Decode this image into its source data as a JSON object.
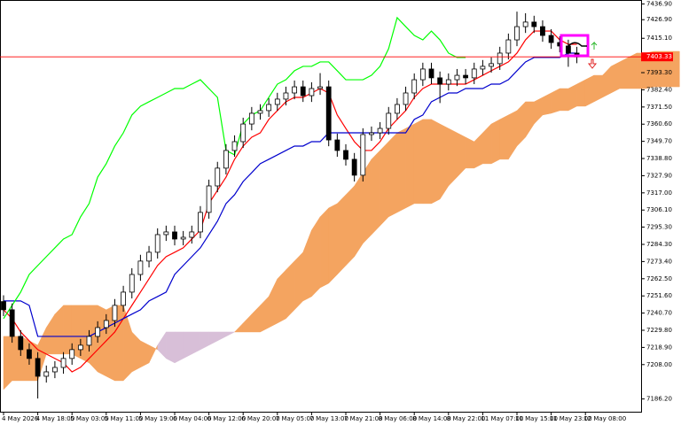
{
  "chart_data": {
    "type": "candlestick",
    "categories": [
      "4 May 2026",
      null,
      null,
      null,
      "4 May 18:00",
      null,
      null,
      null,
      "5 May 03:00",
      null,
      null,
      null,
      "5 May 11:00",
      null,
      null,
      null,
      "5 May 19:00",
      null,
      null,
      null,
      "6 May 04:00",
      null,
      null,
      null,
      "6 May 12:00",
      null,
      null,
      null,
      "6 May 20:00",
      null,
      null,
      null,
      "7 May 05:00",
      null,
      null,
      null,
      "7 May 13:00",
      null,
      null,
      null,
      "7 May 21:00",
      null,
      null,
      null,
      "8 May 06:00",
      null,
      null,
      null,
      "8 May 14:00",
      null,
      null,
      null,
      "8 May 22:00",
      null,
      null,
      null,
      "11 May 07:00",
      null,
      null,
      null,
      "11 May 15:00",
      null,
      null,
      null,
      "11 May 23:00",
      null,
      null,
      null,
      "12 May 08:00",
      null,
      null,
      null,
      null,
      null,
      null,
      null,
      null,
      null,
      null,
      null
    ],
    "candles": {
      "open": [
        7248.0,
        7242.8,
        7225.9,
        7217.5,
        7211.9,
        7200.6,
        7203.4,
        7206.2,
        7211.9,
        7217.5,
        7220.3,
        7225.9,
        7231.5,
        7236.0,
        7245.6,
        7254.0,
        7265.2,
        7273.7,
        7279.3,
        7290.5,
        7292.2,
        7287.7,
        7288.8,
        7292.2,
        7304.6,
        7321.4,
        7332.7,
        7343.9,
        7349.5,
        7360.7,
        7367.5,
        7369.2,
        7373.1,
        7376.5,
        7380.4,
        7384.3,
        7378.7,
        7383.2,
        7384.3,
        7350.6,
        7343.9,
        7338.3,
        7328.2,
        7354.0,
        7355.1,
        7357.9,
        7367.5,
        7373.1,
        7380.4,
        7388.8,
        7395.6,
        7390.0,
        7386.0,
        7388.8,
        7391.6,
        7390.0,
        7395.6,
        7397.3,
        7399.0,
        7405.7,
        7414.1,
        7422.5,
        7425.4,
        7422.5,
        7416.9,
        7412.4,
        7410.2,
        7405.7,
        null,
        null,
        null,
        null,
        null,
        null,
        null,
        null,
        null,
        null,
        null,
        null
      ],
      "high": [
        7252.0,
        7246.8,
        7229.9,
        7221.5,
        7215.9,
        7207.4,
        7210.2,
        7215.9,
        7221.5,
        7224.3,
        7229.9,
        7235.5,
        7240.0,
        7249.6,
        7258.0,
        7269.2,
        7277.7,
        7283.3,
        7294.5,
        7296.2,
        7296.2,
        7292.8,
        7296.2,
        7308.6,
        7325.4,
        7336.7,
        7347.9,
        7353.5,
        7364.7,
        7371.5,
        7373.2,
        7377.1,
        7380.5,
        7384.4,
        7388.3,
        7388.3,
        7387.2,
        7393.0,
        7388.3,
        7354.6,
        7347.9,
        7342.3,
        7358.0,
        7359.1,
        7361.9,
        7371.5,
        7377.1,
        7384.4,
        7392.8,
        7399.6,
        7399.6,
        7394.0,
        7392.8,
        7395.6,
        7395.6,
        7399.6,
        7401.3,
        7403.0,
        7409.7,
        7418.1,
        7432.0,
        7431.0,
        7429.4,
        7426.5,
        7420.9,
        7416.4,
        7414.2,
        7409.7,
        null,
        null,
        null,
        null,
        null,
        null,
        null,
        null,
        null,
        null,
        null,
        null
      ],
      "low": [
        7238.8,
        7221.9,
        7213.5,
        7207.9,
        7186.5,
        7196.6,
        7199.4,
        7202.2,
        7207.9,
        7213.5,
        7216.3,
        7221.9,
        7227.5,
        7232.0,
        7241.6,
        7250.0,
        7261.2,
        7269.7,
        7275.3,
        7286.5,
        7283.7,
        7283.7,
        7284.8,
        7288.2,
        7300.6,
        7317.4,
        7328.7,
        7339.9,
        7345.5,
        7356.7,
        7363.5,
        7365.2,
        7369.1,
        7372.5,
        7376.4,
        7374.7,
        7374.7,
        7379.2,
        7346.6,
        7339.9,
        7334.3,
        7324.2,
        7324.2,
        7350.0,
        7351.1,
        7353.9,
        7363.5,
        7369.1,
        7376.4,
        7384.8,
        7386.0,
        7374.0,
        7382.0,
        7384.8,
        7386.0,
        7386.0,
        7391.6,
        7393.3,
        7395.0,
        7401.7,
        7410.1,
        7418.5,
        7418.5,
        7412.9,
        7408.4,
        7406.2,
        7397.0,
        7399.3,
        null,
        null,
        null,
        null,
        null,
        null,
        null,
        null,
        null,
        null,
        null,
        null
      ],
      "close": [
        7242.8,
        7225.9,
        7217.5,
        7211.9,
        7200.6,
        7203.4,
        7206.2,
        7211.9,
        7217.5,
        7220.3,
        7225.9,
        7231.5,
        7236.0,
        7245.6,
        7254.0,
        7265.2,
        7273.7,
        7279.3,
        7290.5,
        7292.2,
        7287.7,
        7288.8,
        7292.2,
        7304.6,
        7321.4,
        7332.7,
        7343.9,
        7349.5,
        7360.7,
        7367.5,
        7369.2,
        7373.1,
        7376.5,
        7380.4,
        7384.3,
        7378.7,
        7383.2,
        7384.3,
        7350.6,
        7343.9,
        7338.3,
        7328.2,
        7354.0,
        7355.1,
        7357.9,
        7367.5,
        7373.1,
        7380.4,
        7388.8,
        7395.6,
        7390.0,
        7386.0,
        7388.8,
        7391.6,
        7390.0,
        7395.6,
        7397.3,
        7399.0,
        7405.7,
        7414.1,
        7422.5,
        7425.4,
        7422.5,
        7416.9,
        7412.4,
        7410.2,
        7405.7,
        7403.3,
        null,
        null,
        null,
        null,
        null,
        null,
        null,
        null,
        null,
        null,
        null,
        null
      ]
    },
    "up_color": "#ffffff",
    "down_color": "#000000",
    "series": [
      {
        "color": "#ff0000",
        "values": [
          7242.8,
          7237.2,
          7228.7,
          7223.1,
          7217.5,
          7214.7,
          7211.9,
          7209.1,
          7203.4,
          7206.3,
          7211.9,
          7217.5,
          7223.1,
          7228.7,
          7237.2,
          7245.6,
          7254.0,
          7262.4,
          7270.9,
          7276.5,
          7279.3,
          7282.1,
          7287.7,
          7293.3,
          7310.2,
          7318.6,
          7327.0,
          7338.3,
          7346.7,
          7352.3,
          7355.1,
          7363.6,
          7369.2,
          7374.8,
          7377.6,
          7377.6,
          7380.4,
          7383.2,
          7380.4,
          7366.4,
          7357.9,
          7349.5,
          7343.9,
          7343.9,
          7349.5,
          7357.9,
          7363.6,
          7369.2,
          7377.6,
          7383.2,
          7386.0,
          7386.0,
          7386.0,
          7386.0,
          7386.0,
          7388.8,
          7391.6,
          7394.5,
          7397.3,
          7400.1,
          7405.7,
          7414.1,
          7419.7,
          7419.7,
          7419.7,
          7414.1,
          7411.3,
          7411.3,
          null,
          null,
          null,
          null,
          null,
          null,
          null,
          null,
          null,
          null,
          null,
          null
        ]
      },
      {
        "color": "#0000cd",
        "values": [
          7248.4,
          7248.4,
          7248.4,
          7245.6,
          7225.9,
          7225.9,
          7225.9,
          7225.9,
          7225.9,
          7225.9,
          7225.9,
          7228.7,
          7231.5,
          7234.3,
          7237.2,
          7240.0,
          7242.8,
          7248.4,
          7251.2,
          7254.0,
          7265.2,
          7270.9,
          7276.5,
          7282.1,
          7290.5,
          7299.0,
          7310.2,
          7315.8,
          7324.2,
          7329.8,
          7335.5,
          7338.3,
          7341.1,
          7343.9,
          7346.7,
          7346.7,
          7349.5,
          7349.5,
          7355.1,
          7355.1,
          7355.1,
          7355.1,
          7355.1,
          7355.1,
          7355.1,
          7355.1,
          7355.1,
          7355.1,
          7363.6,
          7366.4,
          7374.8,
          7377.6,
          7380.4,
          7380.4,
          7383.2,
          7383.2,
          7383.2,
          7386.0,
          7386.0,
          7388.8,
          7394.5,
          7400.1,
          7402.9,
          7402.9,
          7402.9,
          7402.9,
          7405.7,
          7405.7,
          null,
          null,
          null,
          null,
          null,
          null,
          null,
          null,
          null,
          null,
          null,
          null
        ]
      },
      {
        "color": "#00ff00",
        "values": [
          7237.2,
          7245.6,
          7254.0,
          7265.2,
          7270.9,
          7276.5,
          7282.1,
          7287.7,
          7290.5,
          7301.8,
          7310.2,
          7327.0,
          7335.5,
          7346.7,
          7355.1,
          7366.4,
          7372.0,
          7374.8,
          7377.6,
          7380.4,
          7383.2,
          7383.2,
          7386.0,
          7388.8,
          7383.2,
          7377.6,
          7343.9,
          7341.1,
          7360.7,
          7366.4,
          7369.2,
          7377.6,
          7386.0,
          7388.8,
          7394.5,
          7397.3,
          7397.3,
          7400.1,
          7400.1,
          7394.5,
          7388.8,
          7388.8,
          7388.8,
          7391.6,
          7397.3,
          7408.5,
          7428.2,
          7422.5,
          7416.9,
          7414.1,
          7419.7,
          7414.1,
          7405.7,
          7402.9,
          7402.9,
          null,
          null,
          null,
          null,
          null,
          null,
          null,
          null,
          null,
          null,
          null,
          null,
          null,
          null,
          null,
          null,
          null,
          null,
          null,
          null,
          null,
          null,
          null,
          null,
          null
        ]
      }
    ],
    "cloud": [
      {
        "color": "#f4a460",
        "values": [
          7225.9,
          7225.9,
          7225.9,
          7223.1,
          7220.3,
          7231.5,
          7240.0,
          7245.6,
          7245.6,
          7245.6,
          7245.6,
          7245.6,
          7242.8,
          7245.6,
          7245.6,
          7228.7,
          7223.1,
          7220.3,
          7217.5,
          7211.9,
          7209.1,
          7211.9,
          7214.7,
          7217.5,
          7220.3,
          7223.1,
          7225.9,
          7228.7,
          7234.3,
          7240.0,
          7245.6,
          7251.2,
          7262.4,
          7268.1,
          7273.7,
          7279.3,
          7293.3,
          7301.8,
          7307.4,
          7310.2,
          7315.8,
          7321.4,
          7329.8,
          7338.3,
          7343.9,
          7349.5,
          7355.1,
          7357.9,
          7360.7,
          7363.6,
          7363.6,
          7360.7,
          7357.9,
          7355.1,
          7352.3,
          7349.5,
          7355.1,
          7360.7,
          7363.6,
          7366.4,
          7369.2,
          7374.8,
          7374.8,
          7377.6,
          7380.4,
          7383.2,
          7383.2,
          7386.0,
          7388.8,
          7391.6,
          7391.6,
          7397.3,
          7400.1,
          7402.9,
          7405.7,
          7405.7,
          7406.8,
          7406.8,
          7406.8,
          7406.8
        ]
      },
      {
        "color": "#d8bfd8",
        "values": [
          7192.2,
          7197.8,
          7197.8,
          7197.8,
          7197.8,
          7214.7,
          7214.7,
          7214.7,
          7214.7,
          7211.9,
          7209.1,
          7203.4,
          7200.6,
          7197.8,
          7197.8,
          7203.4,
          7206.3,
          7209.1,
          7220.3,
          7228.7,
          7228.7,
          7228.7,
          7228.7,
          7228.7,
          7228.7,
          7228.7,
          7228.7,
          7228.7,
          7228.7,
          7228.7,
          7228.7,
          7231.5,
          7234.3,
          7237.2,
          7242.8,
          7248.4,
          7251.2,
          7256.8,
          7259.6,
          7265.2,
          7270.9,
          7276.5,
          7284.9,
          7290.5,
          7296.1,
          7301.8,
          7304.6,
          7307.4,
          7310.2,
          7310.2,
          7310.2,
          7313.0,
          7321.4,
          7327.0,
          7332.7,
          7332.7,
          7335.5,
          7335.5,
          7338.3,
          7338.3,
          7346.7,
          7352.3,
          7360.7,
          7366.4,
          7367.5,
          7369.2,
          7369.2,
          7372.0,
          7372.0,
          7374.8,
          7377.6,
          7380.4,
          7383.2,
          7383.2,
          7383.2,
          7383.2,
          7384.3,
          7384.3,
          7384.3,
          7384.3
        ]
      }
    ],
    "current_price": 7403.33,
    "current_color": "#ff0000",
    "ylim": [
      7178.1,
      7439.4
    ],
    "yticks": [
      {
        "value": 7436.9,
        "label": "7436.90"
      },
      {
        "value": 7426.9,
        "label": "7426.90"
      },
      {
        "value": 7415.1,
        "label": "7415.10"
      },
      {
        "value": 7393.3,
        "label": "7393.30"
      },
      {
        "value": 7382.4,
        "label": "7382.40"
      },
      {
        "value": 7371.5,
        "label": "7371.50"
      },
      {
        "value": 7360.6,
        "label": "7360.60"
      },
      {
        "value": 7349.7,
        "label": "7349.70"
      },
      {
        "value": 7338.8,
        "label": "7338.80"
      },
      {
        "value": 7327.9,
        "label": "7327.90"
      },
      {
        "value": 7317,
        "label": "7317.00"
      },
      {
        "value": 7306.1,
        "label": "7306.10"
      },
      {
        "value": 7295.3,
        "label": "7295.30"
      },
      {
        "value": 7284.3,
        "label": "7284.30"
      },
      {
        "value": 7273.4,
        "label": "7273.40"
      },
      {
        "value": 7262.5,
        "label": "7262.50"
      },
      {
        "value": 7251.6,
        "label": "7251.60"
      },
      {
        "value": 7240.7,
        "label": "7240.70"
      },
      {
        "value": 7229.8,
        "label": "7229.80"
      },
      {
        "value": 7218.9,
        "label": "7218.90"
      },
      {
        "value": 7208,
        "label": "7208.00"
      },
      {
        "value": 7186.2,
        "label": "7186.20"
      }
    ],
    "grid": false
  }
}
